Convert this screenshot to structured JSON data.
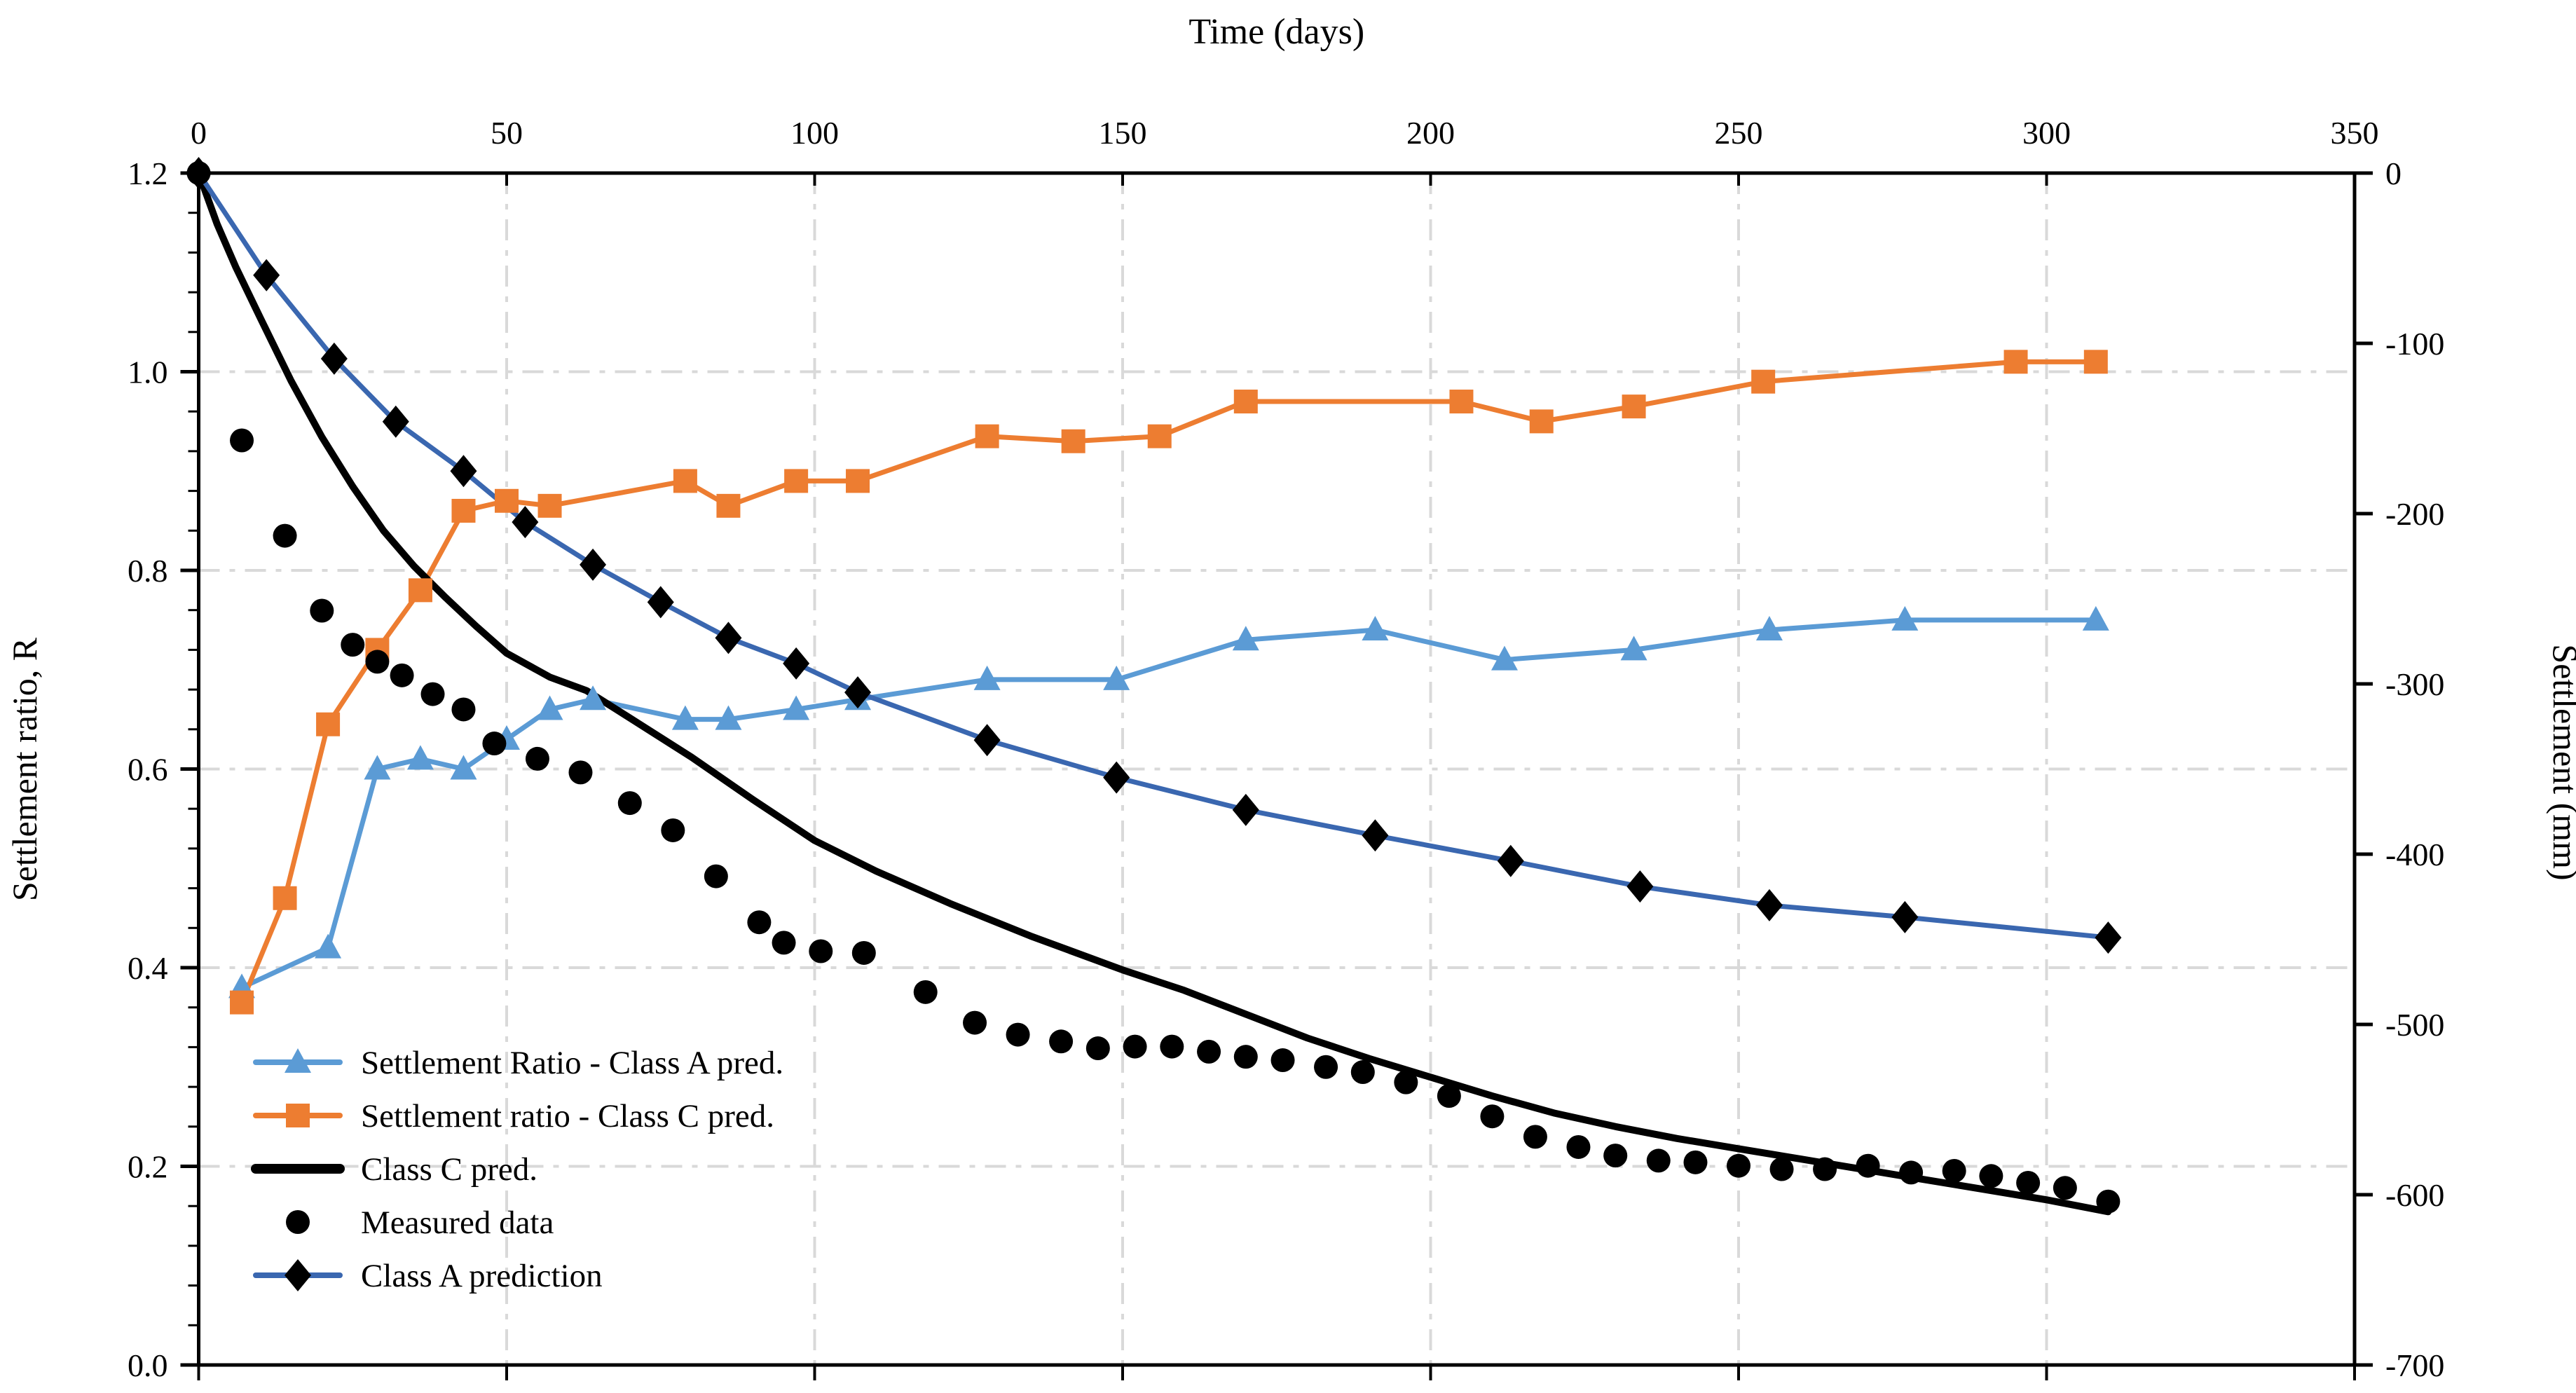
{
  "chart_data": {
    "type": "line",
    "top_axis": {
      "label": "Time (days)",
      "range": [
        0,
        350
      ],
      "ticks": [
        0,
        50,
        100,
        150,
        200,
        250,
        300,
        350
      ]
    },
    "left_axis": {
      "label": "Settlement ratio, R",
      "range": [
        0,
        1.2
      ],
      "ticks": [
        "0.0",
        "0.2",
        "0.4",
        "0.6",
        "0.8",
        "1.0",
        "1.2"
      ],
      "minor_step": 0.04
    },
    "right_axis": {
      "label": "Settlement (mm)",
      "range": [
        -700,
        0
      ],
      "ticks": [
        0,
        -100,
        -200,
        -300,
        -400,
        -500,
        -600,
        -700
      ]
    },
    "grid": {
      "vertical_days": [
        50,
        100,
        150,
        200,
        250,
        300
      ],
      "horizontal_ratios": [
        0.2,
        0.4,
        0.6,
        0.8,
        1.0
      ],
      "color": "#d9d9d9"
    },
    "colors": {
      "class_a_ratio": "#5b9bd5",
      "class_c_ratio": "#ed7d31",
      "class_c_pred": "#000000",
      "measured": "#000000",
      "class_a_pred_line": "#3a67b0",
      "class_a_pred_marker": "#000000"
    },
    "series": [
      {
        "id": "ratio_class_a",
        "name": "Settlement Ratio - Class A pred.",
        "axis": "ratio",
        "marker": "triangle",
        "color": "#5b9bd5",
        "line_width": 7,
        "points": [
          [
            7,
            0.38
          ],
          [
            21,
            0.42
          ],
          [
            29,
            0.6
          ],
          [
            36,
            0.61
          ],
          [
            43,
            0.6
          ],
          [
            50,
            0.63
          ],
          [
            57,
            0.66
          ],
          [
            64,
            0.67
          ],
          [
            79,
            0.65
          ],
          [
            86,
            0.65
          ],
          [
            97,
            0.66
          ],
          [
            107,
            0.67
          ],
          [
            128,
            0.69
          ],
          [
            149,
            0.69
          ],
          [
            170,
            0.73
          ],
          [
            191,
            0.74
          ],
          [
            212,
            0.71
          ],
          [
            233,
            0.72
          ],
          [
            255,
            0.74
          ],
          [
            277,
            0.75
          ],
          [
            308,
            0.75
          ]
        ]
      },
      {
        "id": "ratio_class_c",
        "name": "Settlement ratio - Class C pred.",
        "axis": "ratio",
        "marker": "square",
        "color": "#ed7d31",
        "line_width": 7,
        "points": [
          [
            7,
            0.365
          ],
          [
            14,
            0.47
          ],
          [
            21,
            0.645
          ],
          [
            29,
            0.72
          ],
          [
            36,
            0.78
          ],
          [
            43,
            0.86
          ],
          [
            50,
            0.87
          ],
          [
            57,
            0.865
          ],
          [
            79,
            0.89
          ],
          [
            86,
            0.865
          ],
          [
            97,
            0.89
          ],
          [
            107,
            0.89
          ],
          [
            128,
            0.935
          ],
          [
            142,
            0.93
          ],
          [
            156,
            0.935
          ],
          [
            170,
            0.97
          ],
          [
            205,
            0.97
          ],
          [
            218,
            0.95
          ],
          [
            233,
            0.965
          ],
          [
            254,
            0.99
          ],
          [
            295,
            1.01
          ],
          [
            308,
            1.01
          ]
        ]
      },
      {
        "id": "class_c_pred",
        "name": "Class C pred.",
        "axis": "mm",
        "marker": "none",
        "color": "#000000",
        "line_width": 10,
        "points": [
          [
            0,
            0
          ],
          [
            3,
            -30
          ],
          [
            6,
            -55
          ],
          [
            10,
            -85
          ],
          [
            15,
            -122
          ],
          [
            20,
            -155
          ],
          [
            25,
            -184
          ],
          [
            30,
            -210
          ],
          [
            35,
            -231
          ],
          [
            40,
            -249
          ],
          [
            45,
            -266
          ],
          [
            50,
            -282
          ],
          [
            57,
            -296
          ],
          [
            63,
            -304
          ],
          [
            70,
            -320
          ],
          [
            80,
            -343
          ],
          [
            90,
            -368
          ],
          [
            100,
            -392
          ],
          [
            110,
            -410
          ],
          [
            122,
            -429
          ],
          [
            135,
            -448
          ],
          [
            150,
            -468
          ],
          [
            160,
            -480
          ],
          [
            170,
            -494
          ],
          [
            180,
            -508
          ],
          [
            190,
            -520
          ],
          [
            200,
            -531
          ],
          [
            210,
            -542
          ],
          [
            220,
            -552
          ],
          [
            230,
            -560
          ],
          [
            240,
            -567
          ],
          [
            250,
            -573
          ],
          [
            260,
            -579
          ],
          [
            270,
            -585
          ],
          [
            280,
            -591
          ],
          [
            290,
            -597
          ],
          [
            300,
            -603
          ],
          [
            310,
            -610
          ]
        ]
      },
      {
        "id": "measured",
        "name": "Measured data",
        "axis": "mm",
        "marker": "dot",
        "color": "#000000",
        "line_width": 0,
        "points": [
          [
            0,
            0
          ],
          [
            7,
            -157
          ],
          [
            14,
            -213
          ],
          [
            20,
            -257
          ],
          [
            25,
            -277
          ],
          [
            29,
            -287
          ],
          [
            33,
            -295
          ],
          [
            38,
            -306
          ],
          [
            43,
            -315
          ],
          [
            48,
            -335
          ],
          [
            55,
            -344
          ],
          [
            62,
            -352
          ],
          [
            70,
            -370
          ],
          [
            77,
            -386
          ],
          [
            84,
            -413
          ],
          [
            91,
            -440
          ],
          [
            95,
            -452
          ],
          [
            101,
            -457
          ],
          [
            108,
            -458
          ],
          [
            118,
            -481
          ],
          [
            126,
            -499
          ],
          [
            133,
            -506
          ],
          [
            140,
            -510
          ],
          [
            146,
            -514
          ],
          [
            152,
            -513
          ],
          [
            158,
            -513
          ],
          [
            164,
            -516
          ],
          [
            170,
            -519
          ],
          [
            176,
            -521
          ],
          [
            183,
            -525
          ],
          [
            189,
            -528
          ],
          [
            196,
            -534
          ],
          [
            203,
            -542
          ],
          [
            210,
            -554
          ],
          [
            217,
            -566
          ],
          [
            224,
            -572
          ],
          [
            230,
            -577
          ],
          [
            237,
            -580
          ],
          [
            243,
            -581
          ],
          [
            250,
            -583
          ],
          [
            257,
            -585
          ],
          [
            264,
            -585
          ],
          [
            271,
            -583
          ],
          [
            278,
            -587
          ],
          [
            285,
            -586
          ],
          [
            291,
            -589
          ],
          [
            297,
            -593
          ],
          [
            303,
            -596
          ],
          [
            310,
            -604
          ]
        ]
      },
      {
        "id": "class_a_pred",
        "name": "Class A prediction",
        "axis": "mm",
        "marker": "diamond",
        "color": "#3a67b0",
        "marker_color": "#000000",
        "line_width": 7,
        "points": [
          [
            0,
            0
          ],
          [
            11,
            -60
          ],
          [
            22,
            -109
          ],
          [
            32,
            -146
          ],
          [
            43,
            -175
          ],
          [
            53,
            -205
          ],
          [
            64,
            -230
          ],
          [
            75,
            -252
          ],
          [
            86,
            -273
          ],
          [
            97,
            -288
          ],
          [
            107,
            -305
          ],
          [
            128,
            -333
          ],
          [
            149,
            -355
          ],
          [
            170,
            -374
          ],
          [
            191,
            -389
          ],
          [
            213,
            -404
          ],
          [
            234,
            -419
          ],
          [
            255,
            -430
          ],
          [
            277,
            -437
          ],
          [
            310,
            -449
          ]
        ]
      }
    ],
    "legend": {
      "position": "bottom-left",
      "items": [
        "Settlement Ratio - Class A pred.",
        "Settlement ratio - Class C pred.",
        "Class C pred.",
        "Measured data",
        "Class A prediction"
      ]
    }
  }
}
